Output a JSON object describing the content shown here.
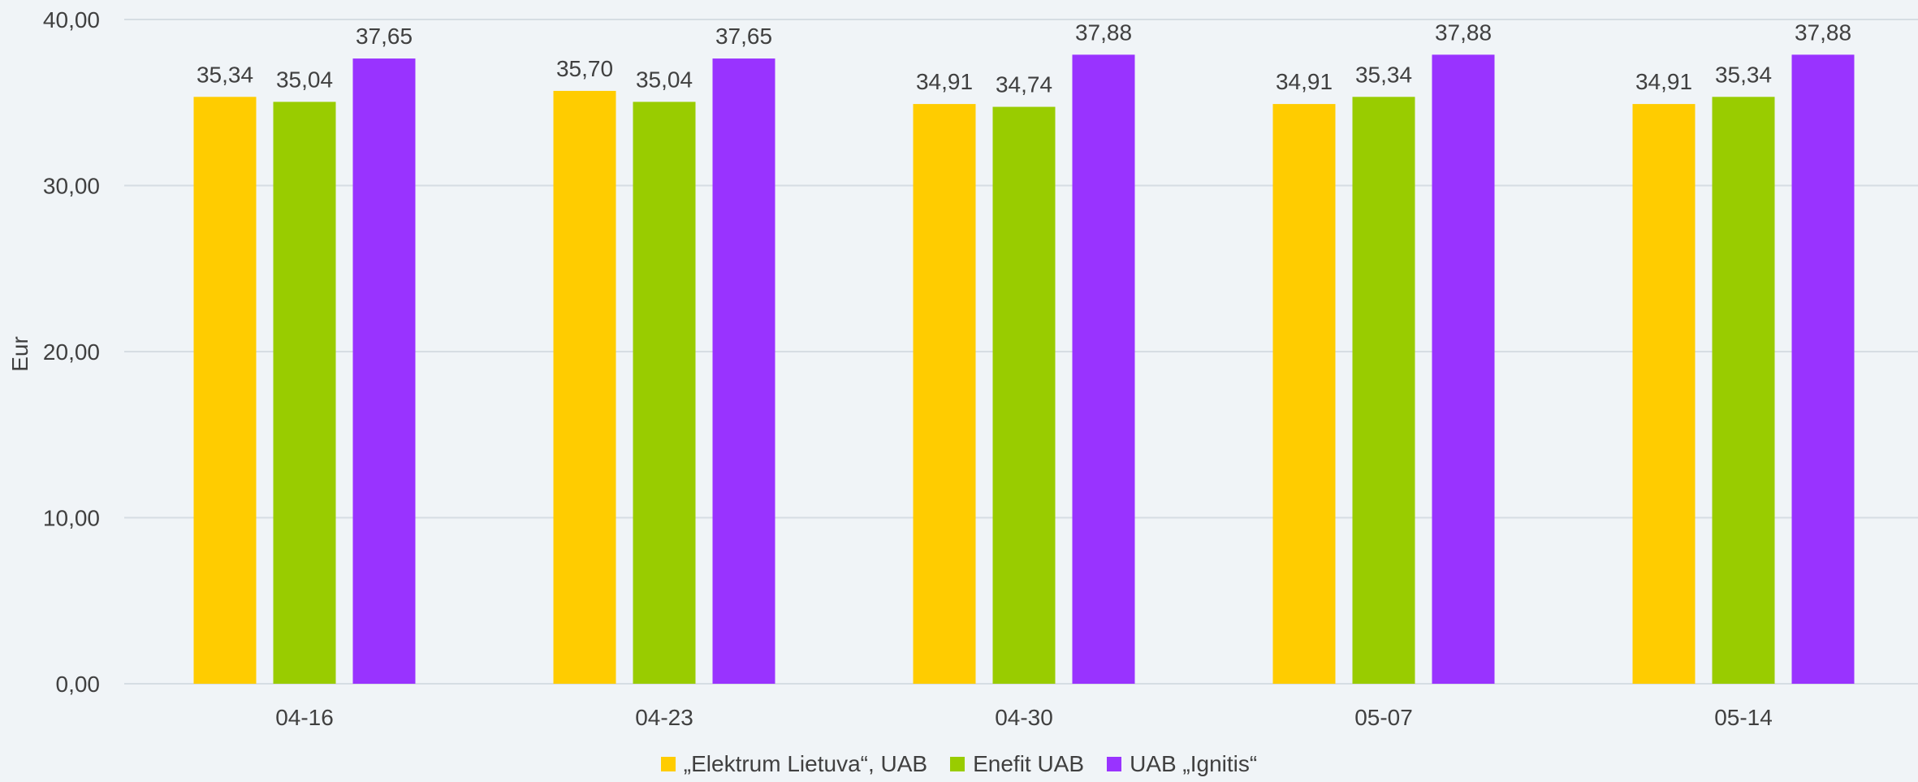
{
  "chart_data": {
    "type": "bar",
    "title": "",
    "xlabel": "",
    "ylabel": "Eur",
    "ylim": [
      0,
      40
    ],
    "y_ticks": [
      "0,00",
      "10,00",
      "20,00",
      "30,00",
      "40,00"
    ],
    "y_tick_values": [
      0,
      10,
      20,
      30,
      40
    ],
    "grid": true,
    "legend_position": "bottom",
    "categories": [
      "04-16",
      "04-23",
      "04-30",
      "05-07",
      "05-14"
    ],
    "series": [
      {
        "name": "„Elektrum Lietuva“, UAB",
        "color": "#ffcc00",
        "values": [
          35.34,
          35.7,
          34.91,
          34.91,
          34.91
        ],
        "labels": [
          "35,34",
          "35,70",
          "34,91",
          "34,91",
          "34,91"
        ]
      },
      {
        "name": "Enefit UAB",
        "color": "#99cc00",
        "values": [
          35.04,
          35.04,
          34.74,
          35.34,
          35.34
        ],
        "labels": [
          "35,04",
          "35,04",
          "34,74",
          "35,34",
          "35,34"
        ]
      },
      {
        "name": "UAB „Ignitis“",
        "color": "#9933ff",
        "values": [
          37.65,
          37.65,
          37.88,
          37.88,
          37.88
        ],
        "labels": [
          "37,65",
          "37,65",
          "37,88",
          "37,88",
          "37,88"
        ]
      }
    ]
  }
}
